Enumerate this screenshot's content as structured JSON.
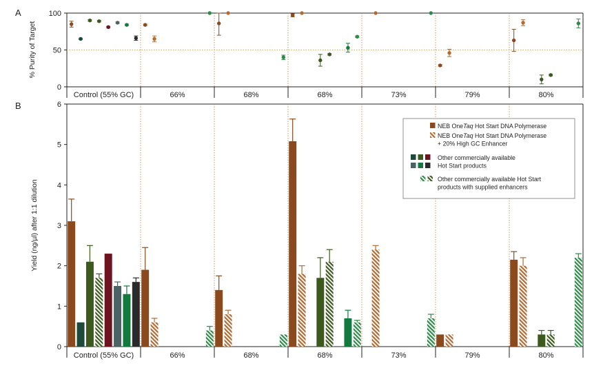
{
  "colors": {
    "one_taq": "#8B4A1E",
    "one_taq_gc": "#B06A32",
    "dark_teal": "#1E4A3C",
    "olive": "#3C5A1E",
    "maroon": "#6E1420",
    "slate": "#4A6466",
    "green": "#137A3E",
    "black": "#2A2A2A",
    "gc_green": "#2E8A46",
    "divider": "#C88A4A",
    "ref_line": "#C8A86E"
  },
  "chart_data": [
    {
      "panel": "A",
      "type": "scatter",
      "ylabel": "% Purity of Target",
      "ylim": [
        0,
        100
      ],
      "yticks": [
        0,
        50,
        100
      ],
      "reference_line_y": 50,
      "categories": [
        "Control (55% GC)",
        "66%",
        "68%",
        "68%",
        "73%",
        "79%",
        "80%"
      ],
      "points": [
        {
          "category": 0,
          "slot": 0,
          "series": "one_taq",
          "y": 85,
          "err": 4
        },
        {
          "category": 0,
          "slot": 1,
          "series": "dark_teal",
          "y": 65,
          "err": 1
        },
        {
          "category": 0,
          "slot": 2,
          "series": "olive",
          "y": 90,
          "err": 1
        },
        {
          "category": 0,
          "slot": 3,
          "series": "olive_gc",
          "y": 89,
          "err": 1
        },
        {
          "category": 0,
          "slot": 4,
          "series": "maroon",
          "y": 81,
          "err": 1
        },
        {
          "category": 0,
          "slot": 5,
          "series": "slate",
          "y": 87,
          "err": 1
        },
        {
          "category": 0,
          "slot": 6,
          "series": "green",
          "y": 84,
          "err": 1
        },
        {
          "category": 0,
          "slot": 7,
          "series": "black",
          "y": 66,
          "err": 3
        },
        {
          "category": 1,
          "slot": 0,
          "series": "one_taq",
          "y": 84,
          "err": 1
        },
        {
          "category": 1,
          "slot": 1,
          "series": "one_taq_gc",
          "y": 65,
          "err": 4
        },
        {
          "category": 1,
          "slot": 7,
          "series": "gc_green",
          "y": 100,
          "err": 0
        },
        {
          "category": 2,
          "slot": 0,
          "series": "one_taq",
          "y": 86,
          "err": 16
        },
        {
          "category": 2,
          "slot": 1,
          "series": "one_taq_gc",
          "y": 100,
          "err": 0
        },
        {
          "category": 2,
          "slot": 7,
          "series": "gc_green",
          "y": 40,
          "err": 3
        },
        {
          "category": 3,
          "slot": 0,
          "series": "one_taq",
          "y": 97,
          "err": 2
        },
        {
          "category": 3,
          "slot": 1,
          "series": "one_taq_gc",
          "y": 100,
          "err": 0
        },
        {
          "category": 3,
          "slot": 3,
          "series": "olive",
          "y": 36,
          "err": 8
        },
        {
          "category": 3,
          "slot": 4,
          "series": "olive_gc",
          "y": 44,
          "err": 1
        },
        {
          "category": 3,
          "slot": 6,
          "series": "green",
          "y": 53,
          "err": 6
        },
        {
          "category": 3,
          "slot": 7,
          "series": "gc_green",
          "y": 68,
          "err": 1
        },
        {
          "category": 4,
          "slot": 1,
          "series": "one_taq_gc",
          "y": 100,
          "err": 0
        },
        {
          "category": 4,
          "slot": 7,
          "series": "gc_green",
          "y": 100,
          "err": 0
        },
        {
          "category": 5,
          "slot": 0,
          "series": "one_taq",
          "y": 29,
          "err": 1
        },
        {
          "category": 5,
          "slot": 1,
          "series": "one_taq_gc",
          "y": 46,
          "err": 5
        },
        {
          "category": 6,
          "slot": 0,
          "series": "one_taq",
          "y": 63,
          "err": 15
        },
        {
          "category": 6,
          "slot": 1,
          "series": "one_taq_gc",
          "y": 87,
          "err": 4
        },
        {
          "category": 6,
          "slot": 3,
          "series": "olive",
          "y": 10,
          "err": 6
        },
        {
          "category": 6,
          "slot": 4,
          "series": "olive_gc",
          "y": 16,
          "err": 1
        },
        {
          "category": 6,
          "slot": 7,
          "series": "gc_green",
          "y": 86,
          "err": 6
        }
      ]
    },
    {
      "panel": "B",
      "type": "bar",
      "ylabel": "Yield (ng/µl) after 1:1 dilution",
      "ylim": [
        0,
        6
      ],
      "yticks": [
        0,
        1,
        2,
        3,
        4,
        5,
        6
      ],
      "categories": [
        "Control (55% GC)",
        "66%",
        "68%",
        "68%",
        "73%",
        "79%",
        "80%"
      ],
      "bars": [
        {
          "category": 0,
          "slot": 0,
          "series": "one_taq",
          "y": 3.1,
          "err": 0.55
        },
        {
          "category": 0,
          "slot": 1,
          "series": "dark_teal",
          "y": 0.6,
          "err": 0
        },
        {
          "category": 0,
          "slot": 2,
          "series": "olive",
          "y": 2.1,
          "err": 0.4
        },
        {
          "category": 0,
          "slot": 3,
          "series": "olive_gc",
          "y": 1.7,
          "err": 0.1
        },
        {
          "category": 0,
          "slot": 4,
          "series": "maroon",
          "y": 2.3,
          "err": 0
        },
        {
          "category": 0,
          "slot": 5,
          "series": "slate",
          "y": 1.5,
          "err": 0.1
        },
        {
          "category": 0,
          "slot": 6,
          "series": "green",
          "y": 1.3,
          "err": 0.2
        },
        {
          "category": 0,
          "slot": 7,
          "series": "black",
          "y": 1.6,
          "err": 0.1
        },
        {
          "category": 1,
          "slot": 0,
          "series": "one_taq",
          "y": 1.9,
          "err": 0.55
        },
        {
          "category": 1,
          "slot": 1,
          "series": "one_taq_gc",
          "y": 0.6,
          "err": 0.1
        },
        {
          "category": 1,
          "slot": 7,
          "series": "gc_green",
          "y": 0.4,
          "err": 0.1
        },
        {
          "category": 2,
          "slot": 0,
          "series": "one_taq",
          "y": 1.4,
          "err": 0.35
        },
        {
          "category": 2,
          "slot": 1,
          "series": "one_taq_gc",
          "y": 0.8,
          "err": 0.1
        },
        {
          "category": 2,
          "slot": 7,
          "series": "gc_green",
          "y": 0.3,
          "err": 0
        },
        {
          "category": 3,
          "slot": 0,
          "series": "one_taq",
          "y": 5.08,
          "err": 0.55
        },
        {
          "category": 3,
          "slot": 1,
          "series": "one_taq_gc",
          "y": 1.8,
          "err": 0.2
        },
        {
          "category": 3,
          "slot": 3,
          "series": "olive",
          "y": 1.7,
          "err": 0.5
        },
        {
          "category": 3,
          "slot": 4,
          "series": "olive_gc",
          "y": 2.1,
          "err": 0.3
        },
        {
          "category": 3,
          "slot": 6,
          "series": "green",
          "y": 0.7,
          "err": 0.2
        },
        {
          "category": 3,
          "slot": 7,
          "series": "gc_green",
          "y": 0.6,
          "err": 0.05
        },
        {
          "category": 4,
          "slot": 1,
          "series": "one_taq_gc",
          "y": 2.4,
          "err": 0.1
        },
        {
          "category": 4,
          "slot": 7,
          "series": "gc_green",
          "y": 0.7,
          "err": 0.1
        },
        {
          "category": 5,
          "slot": 0,
          "series": "one_taq",
          "y": 0.3,
          "err": 0
        },
        {
          "category": 5,
          "slot": 1,
          "series": "one_taq_gc",
          "y": 0.3,
          "err": 0
        },
        {
          "category": 6,
          "slot": 0,
          "series": "one_taq",
          "y": 2.15,
          "err": 0.2
        },
        {
          "category": 6,
          "slot": 1,
          "series": "one_taq_gc",
          "y": 2.0,
          "err": 0.2
        },
        {
          "category": 6,
          "slot": 3,
          "series": "olive",
          "y": 0.3,
          "err": 0.1
        },
        {
          "category": 6,
          "slot": 4,
          "series": "olive_gc",
          "y": 0.3,
          "err": 0.1
        },
        {
          "category": 6,
          "slot": 7,
          "series": "gc_green",
          "y": 2.2,
          "err": 0.1
        }
      ],
      "legend": {
        "placement": "top-right",
        "entries": [
          {
            "swatches": [
              {
                "series": "one_taq"
              }
            ],
            "lines": [
              [
                {
                  "t": "NEB One"
                },
                {
                  "t": "Taq",
                  "italic": true
                },
                {
                  "t": " Hot Start DNA Polymerase"
                }
              ]
            ]
          },
          {
            "swatches": [
              {
                "series": "one_taq_gc"
              }
            ],
            "lines": [
              [
                {
                  "t": "NEB One"
                },
                {
                  "t": "Taq",
                  "italic": true
                },
                {
                  "t": " Hot Start DNA Polymerase"
                }
              ],
              [
                {
                  "t": "+ 20% High GC Enhancer"
                }
              ]
            ]
          },
          {
            "swatches": [
              {
                "series": "dark_teal"
              },
              {
                "series": "olive"
              },
              {
                "series": "maroon"
              },
              {
                "series": "slate"
              },
              {
                "series": "green"
              },
              {
                "series": "black"
              }
            ],
            "lines": [
              [
                {
                  "t": "Other commercially available"
                }
              ],
              [
                {
                  "t": "Hot Start products"
                }
              ]
            ]
          },
          {
            "swatches": [
              {
                "series": "gc_green"
              },
              {
                "series": "olive_gc"
              }
            ],
            "lines": [
              [
                {
                  "t": "Other commercially available Hot Start"
                }
              ],
              [
                {
                  "t": "products with supplied enhancers"
                }
              ]
            ]
          }
        ]
      }
    }
  ]
}
